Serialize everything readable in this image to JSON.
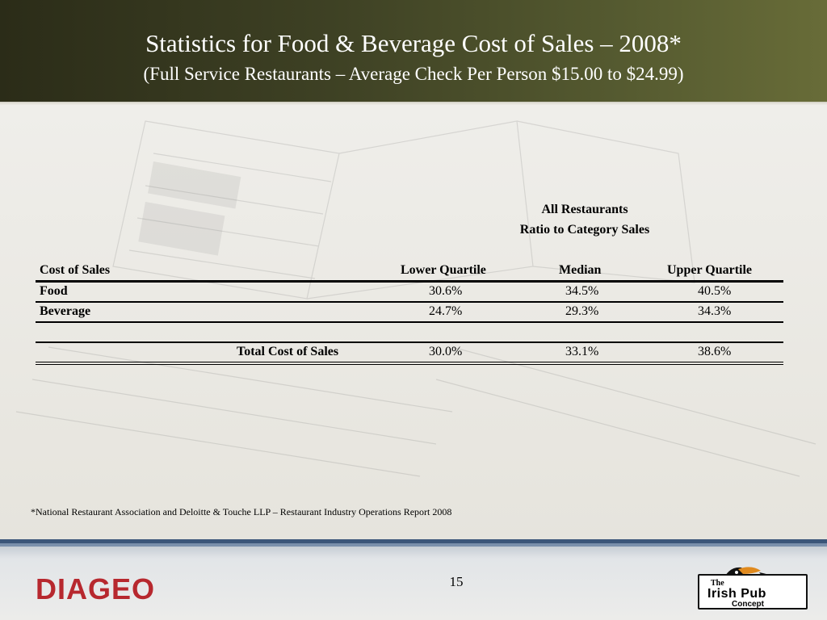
{
  "header": {
    "title": "Statistics for Food & Beverage Cost of Sales – 2008*",
    "subtitle": "(Full Service Restaurants – Average Check Per Person $15.00 to $24.99)"
  },
  "table": {
    "group_line1": "All Restaurants",
    "group_line2": "Ratio to Category Sales",
    "columns": [
      "Cost of Sales",
      "Lower Quartile",
      "Median",
      "Upper Quartile"
    ],
    "rows": [
      {
        "label": "Food",
        "values": [
          "30.6%",
          "34.5%",
          "40.5%"
        ]
      },
      {
        "label": "Beverage",
        "values": [
          "24.7%",
          "29.3%",
          "34.3%"
        ]
      }
    ],
    "total": {
      "label": "Total Cost of Sales",
      "values": [
        "30.0%",
        "33.1%",
        "38.6%"
      ]
    }
  },
  "footnote": "*National Restaurant Association and Deloitte & Touche LLP – Restaurant Industry Operations Report 2008",
  "footer": {
    "page_number": "15",
    "brand_logo": "DIAGEO",
    "concept_logo": {
      "line1": "The",
      "line2": "Irish Pub",
      "line3": "Concept"
    }
  },
  "colors": {
    "header_dark": "#2b2c18",
    "header_light": "#686c38",
    "brand_red": "#b7282e",
    "footer_blue": "#3b5579"
  }
}
